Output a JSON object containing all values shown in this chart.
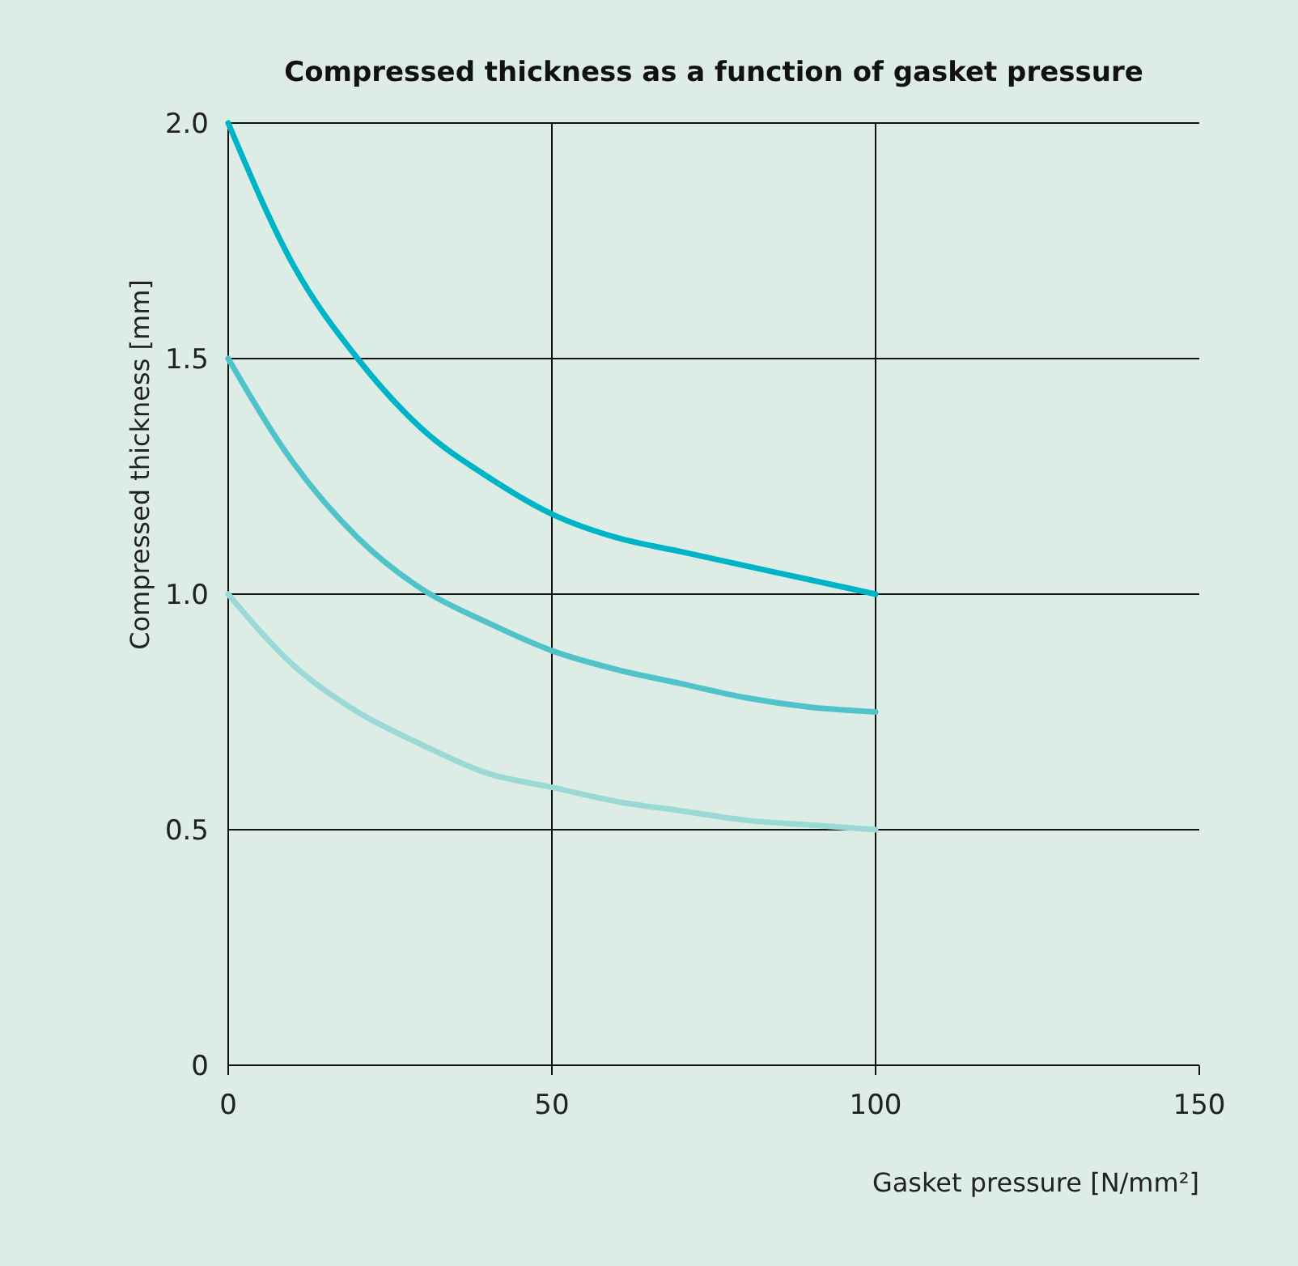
{
  "chart_data": {
    "type": "line",
    "title": "Compressed thickness as a function of gasket pressure",
    "xlabel": "Gasket pressure [N/mm²]",
    "ylabel": "Compressed thickness [mm]",
    "x": [
      0,
      10,
      20,
      30,
      40,
      50,
      60,
      70,
      80,
      90,
      100
    ],
    "series": [
      {
        "color": "#00b4c8",
        "values": [
          2.0,
          1.7,
          1.5,
          1.35,
          1.25,
          1.17,
          1.12,
          1.09,
          1.06,
          1.03,
          1.0
        ]
      },
      {
        "color": "#4fc3c9",
        "values": [
          1.5,
          1.28,
          1.12,
          1.01,
          0.94,
          0.88,
          0.84,
          0.81,
          0.78,
          0.76,
          0.75
        ]
      },
      {
        "color": "#9bd9d6",
        "values": [
          1.0,
          0.85,
          0.75,
          0.68,
          0.62,
          0.59,
          0.56,
          0.54,
          0.52,
          0.51,
          0.5
        ]
      }
    ],
    "xlim": [
      0,
      150
    ],
    "xticks": [
      0,
      50,
      100,
      150
    ],
    "ylim": [
      0,
      2
    ],
    "yticks": [
      0,
      {
        "value": 0.5,
        "label": "0.5"
      },
      {
        "value": 1,
        "label": "1.0"
      },
      {
        "value": 1.5,
        "label": "1.5"
      },
      {
        "value": 2,
        "label": "2.0"
      }
    ],
    "grid": true,
    "marker": "none",
    "line_style": "solid"
  }
}
